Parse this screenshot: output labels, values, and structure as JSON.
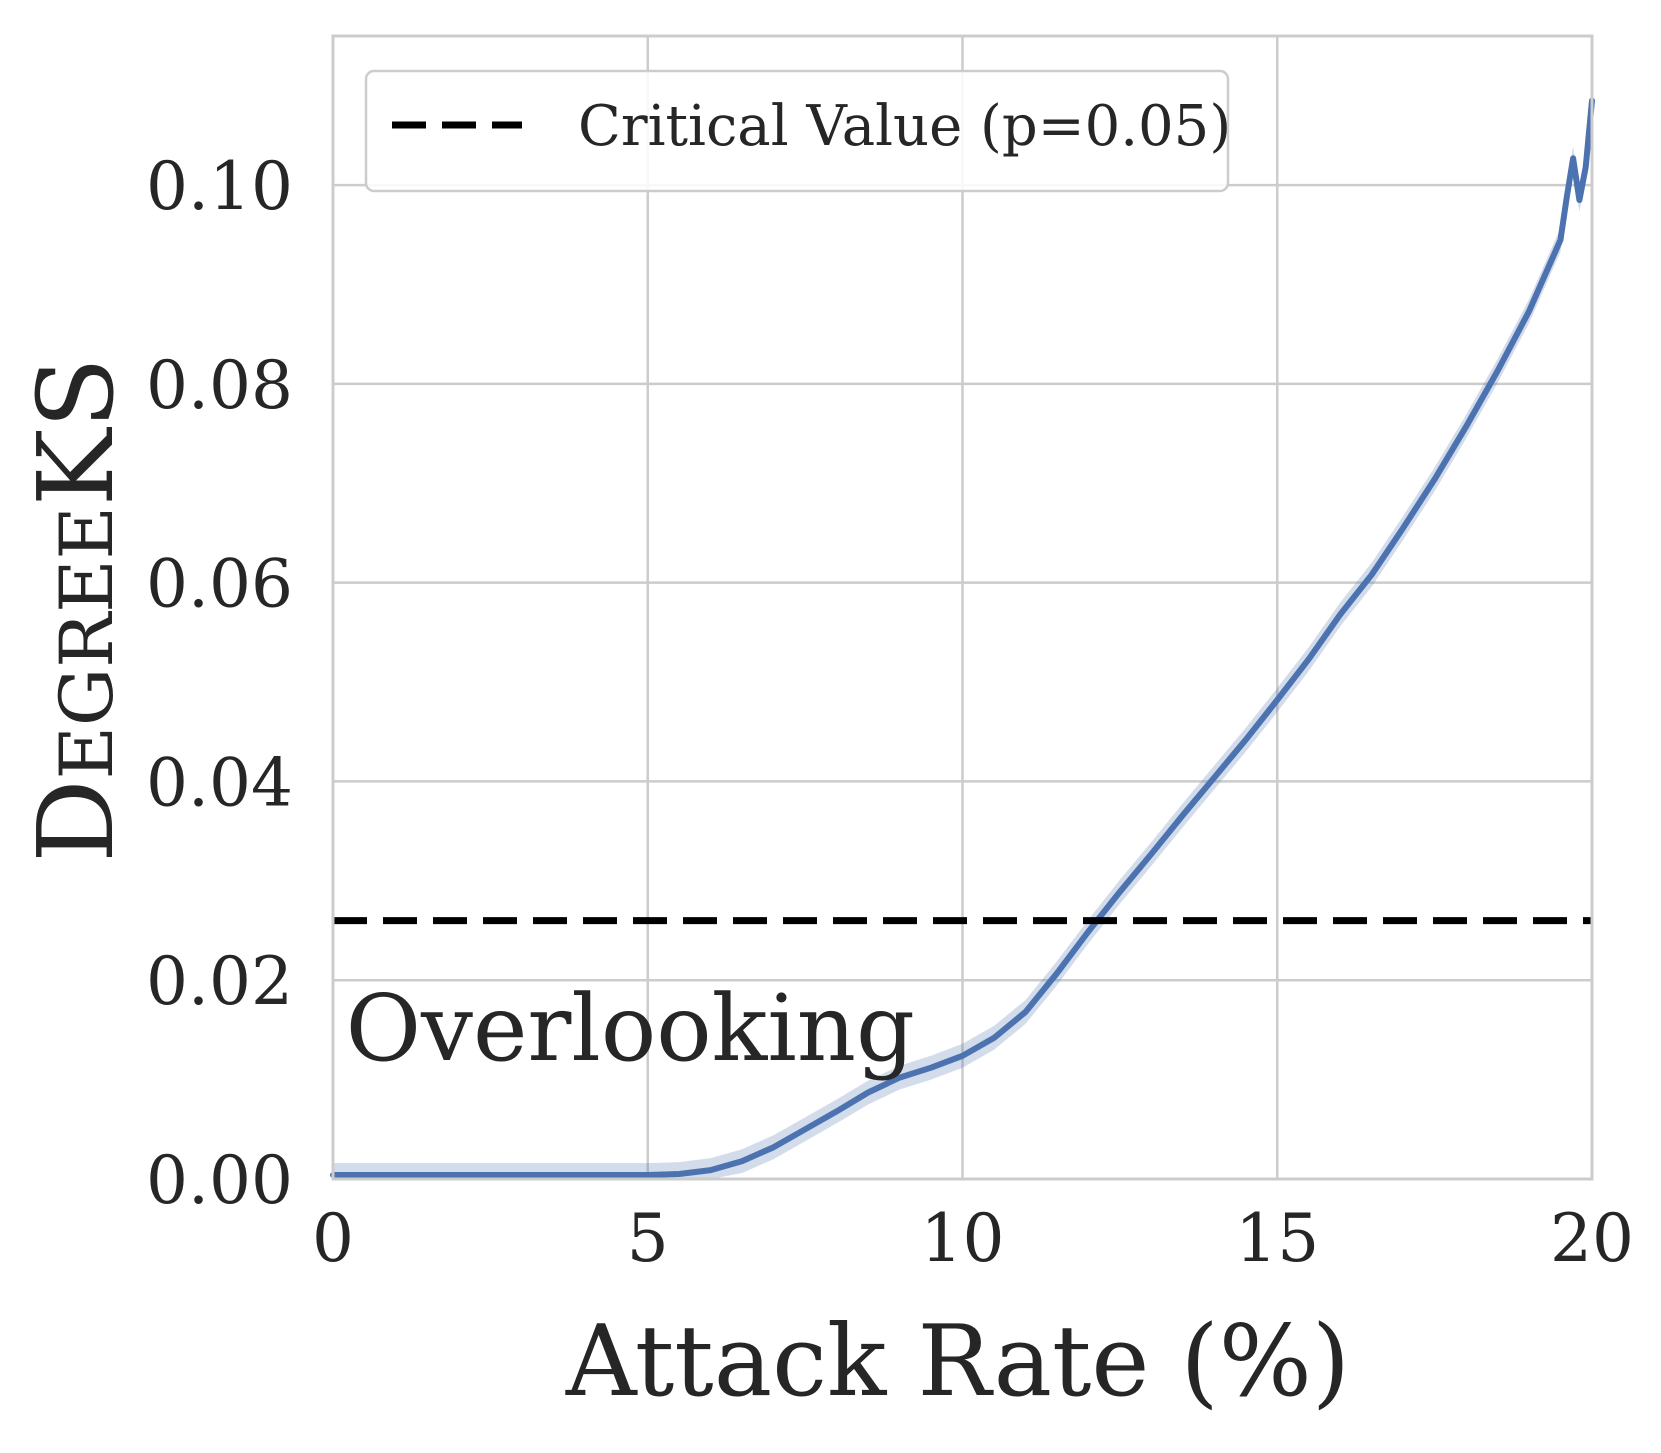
{
  "chart_data": {
    "type": "line",
    "title": "",
    "xlabel": "Attack Rate (%)",
    "ylabel": "DegreeKS",
    "xlim": [
      0,
      20
    ],
    "ylim": [
      0,
      0.115
    ],
    "xticks": [
      0,
      5,
      10,
      15,
      20
    ],
    "xtick_labels": [
      "0",
      "5",
      "10",
      "15",
      "20"
    ],
    "yticks": [
      0,
      0.02,
      0.04,
      0.06,
      0.08,
      0.1
    ],
    "ytick_labels": [
      "0.00",
      "0.02",
      "0.04",
      "0.06",
      "0.08",
      "0.10"
    ],
    "grid": true,
    "legend_position": "top-left",
    "series": [
      {
        "name": "DegreeKS",
        "color": "#4c72b0",
        "x": [
          0,
          2,
          4,
          5,
          5.5,
          6,
          6.5,
          7,
          7.5,
          8,
          8.5,
          9,
          9.5,
          10,
          10.5,
          11,
          11.5,
          12,
          12.5,
          13,
          13.5,
          14,
          14.5,
          15,
          15.5,
          16,
          16.5,
          17,
          17.5,
          18,
          18.5,
          19,
          19.5,
          19.6,
          19.7,
          19.8,
          19.9,
          20
        ],
        "values": [
          0.0004,
          0.0004,
          0.0004,
          0.0004,
          0.0005,
          0.0009,
          0.0018,
          0.0032,
          0.005,
          0.0068,
          0.0087,
          0.0102,
          0.0112,
          0.0124,
          0.0142,
          0.0168,
          0.0207,
          0.0249,
          0.0289,
          0.0327,
          0.0366,
          0.0404,
          0.0442,
          0.0482,
          0.0523,
          0.0568,
          0.0608,
          0.0655,
          0.0704,
          0.0757,
          0.0813,
          0.0873,
          0.0945,
          0.0988,
          0.1027,
          0.0985,
          0.1018,
          0.1085
        ],
        "band": 0.0012
      }
    ],
    "reference_lines": [
      {
        "name": "Critical Value (p=0.05)",
        "y": 0.026,
        "style": "dashed",
        "color": "#000000"
      }
    ],
    "legend": [
      "Critical Value (p=0.05)"
    ],
    "annotations": [
      {
        "text": "Overlooking",
        "x": 0.2,
        "y": 0.015
      }
    ]
  }
}
